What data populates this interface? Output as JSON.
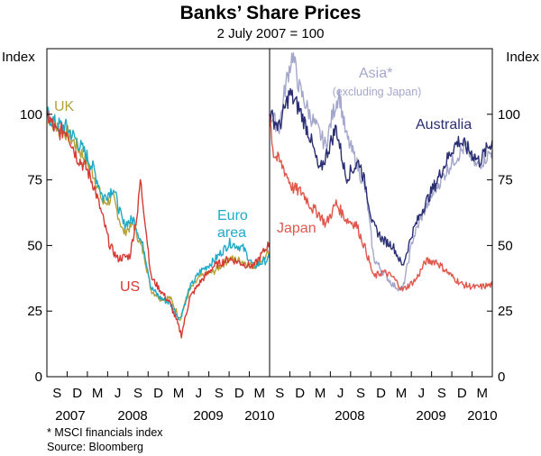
{
  "chart_data": {
    "type": "line",
    "title": "Banks’ Share Prices",
    "subtitle": "2 July 2007 = 100",
    "ylabel_left": "Index",
    "ylabel_right": "Index",
    "ylim": [
      0,
      125
    ],
    "yticks": [
      0,
      25,
      50,
      75,
      100
    ],
    "x_range": [
      "2007-07-02",
      "2010-04-15"
    ],
    "month_ticks": [
      "S",
      "D",
      "M",
      "J",
      "S",
      "D",
      "M",
      "J",
      "S",
      "D",
      "M"
    ],
    "panels": [
      {
        "name": "left",
        "year_labels": [
          "2007",
          "2008",
          "2009",
          "2010"
        ],
        "series": [
          {
            "name": "UK",
            "color": "#b5a338",
            "points": [
              [
                "2007-07-02",
                100
              ],
              [
                "2007-08-15",
                95
              ],
              [
                "2007-10-01",
                93
              ],
              [
                "2007-11-15",
                88
              ],
              [
                "2008-01-01",
                82
              ],
              [
                "2008-02-01",
                77
              ],
              [
                "2008-03-15",
                66
              ],
              [
                "2008-05-01",
                68
              ],
              [
                "2008-06-15",
                55
              ],
              [
                "2008-08-01",
                58
              ],
              [
                "2008-09-20",
                46
              ],
              [
                "2008-10-20",
                33
              ],
              [
                "2008-12-01",
                30
              ],
              [
                "2009-01-15",
                30
              ],
              [
                "2009-03-01",
                22
              ],
              [
                "2009-04-15",
                33
              ],
              [
                "2009-06-01",
                38
              ],
              [
                "2009-08-01",
                40
              ],
              [
                "2009-10-15",
                45
              ],
              [
                "2009-12-15",
                44
              ],
              [
                "2010-02-01",
                42
              ],
              [
                "2010-04-15",
                47
              ]
            ]
          },
          {
            "name": "Euro area",
            "color": "#1eaac8",
            "points": [
              [
                "2007-07-02",
                100
              ],
              [
                "2007-08-15",
                96
              ],
              [
                "2007-10-01",
                95
              ],
              [
                "2007-11-15",
                90
              ],
              [
                "2008-01-01",
                84
              ],
              [
                "2008-02-01",
                79
              ],
              [
                "2008-03-15",
                68
              ],
              [
                "2008-05-01",
                72
              ],
              [
                "2008-06-15",
                58
              ],
              [
                "2008-08-01",
                60
              ],
              [
                "2008-09-20",
                48
              ],
              [
                "2008-10-20",
                34
              ],
              [
                "2008-12-01",
                30
              ],
              [
                "2009-01-15",
                28
              ],
              [
                "2009-03-01",
                22
              ],
              [
                "2009-04-15",
                34
              ],
              [
                "2009-06-01",
                40
              ],
              [
                "2009-08-01",
                44
              ],
              [
                "2009-10-15",
                51
              ],
              [
                "2009-12-15",
                49
              ],
              [
                "2010-02-01",
                42
              ],
              [
                "2010-04-15",
                45
              ]
            ]
          },
          {
            "name": "US",
            "color": "#d63a34",
            "points": [
              [
                "2007-07-02",
                100
              ],
              [
                "2007-08-15",
                93
              ],
              [
                "2007-10-01",
                94
              ],
              [
                "2007-11-15",
                84
              ],
              [
                "2008-01-01",
                79
              ],
              [
                "2008-02-01",
                73
              ],
              [
                "2008-03-15",
                60
              ],
              [
                "2008-04-15",
                50
              ],
              [
                "2008-05-20",
                45
              ],
              [
                "2008-07-15",
                46
              ],
              [
                "2008-08-20",
                63
              ],
              [
                "2008-09-01",
                75
              ],
              [
                "2008-09-25",
                58
              ],
              [
                "2008-10-20",
                38
              ],
              [
                "2008-12-01",
                33
              ],
              [
                "2009-01-15",
                28
              ],
              [
                "2009-03-08",
                16
              ],
              [
                "2009-04-15",
                30
              ],
              [
                "2009-06-01",
                36
              ],
              [
                "2009-08-01",
                42
              ],
              [
                "2009-10-15",
                45
              ],
              [
                "2009-12-15",
                43
              ],
              [
                "2010-02-01",
                42
              ],
              [
                "2010-04-15",
                51
              ]
            ]
          }
        ]
      },
      {
        "name": "right",
        "year_labels": [
          "2008",
          "2009",
          "2010"
        ],
        "series": [
          {
            "name": "Asia*",
            "note": "(excluding Japan)",
            "color": "#a4a7cb",
            "points": [
              [
                "2007-07-02",
                100
              ],
              [
                "2007-08-15",
                95
              ],
              [
                "2007-09-15",
                112
              ],
              [
                "2007-10-15",
                123
              ],
              [
                "2007-11-15",
                110
              ],
              [
                "2008-01-01",
                100
              ],
              [
                "2008-02-01",
                95
              ],
              [
                "2008-03-15",
                88
              ],
              [
                "2008-04-15",
                100
              ],
              [
                "2008-05-15",
                108
              ],
              [
                "2008-06-15",
                92
              ],
              [
                "2008-08-01",
                82
              ],
              [
                "2008-09-15",
                70
              ],
              [
                "2008-10-20",
                45
              ],
              [
                "2008-12-01",
                40
              ],
              [
                "2009-01-15",
                35
              ],
              [
                "2009-03-01",
                33
              ],
              [
                "2009-04-15",
                52
              ],
              [
                "2009-06-01",
                62
              ],
              [
                "2009-08-01",
                72
              ],
              [
                "2009-10-15",
                82
              ],
              [
                "2009-12-15",
                88
              ],
              [
                "2010-02-01",
                80
              ],
              [
                "2010-04-15",
                86
              ]
            ]
          },
          {
            "name": "Australia",
            "color": "#2a2e72",
            "points": [
              [
                "2007-07-02",
                100
              ],
              [
                "2007-08-15",
                95
              ],
              [
                "2007-10-01",
                108
              ],
              [
                "2007-11-15",
                102
              ],
              [
                "2008-01-01",
                92
              ],
              [
                "2008-02-15",
                78
              ],
              [
                "2008-03-15",
                84
              ],
              [
                "2008-05-01",
                95
              ],
              [
                "2008-06-15",
                76
              ],
              [
                "2008-08-15",
                82
              ],
              [
                "2008-09-15",
                72
              ],
              [
                "2008-10-15",
                58
              ],
              [
                "2008-12-01",
                52
              ],
              [
                "2009-01-15",
                50
              ],
              [
                "2009-03-01",
                42
              ],
              [
                "2009-04-15",
                55
              ],
              [
                "2009-06-01",
                64
              ],
              [
                "2009-08-01",
                74
              ],
              [
                "2009-10-15",
                87
              ],
              [
                "2009-11-15",
                90
              ],
              [
                "2010-01-01",
                86
              ],
              [
                "2010-02-15",
                82
              ],
              [
                "2010-04-15",
                90
              ]
            ]
          },
          {
            "name": "Japan",
            "color": "#e0584c",
            "points": [
              [
                "2007-07-02",
                100
              ],
              [
                "2007-07-20",
                85
              ],
              [
                "2007-09-01",
                80
              ],
              [
                "2007-10-15",
                72
              ],
              [
                "2007-12-01",
                70
              ],
              [
                "2008-01-15",
                64
              ],
              [
                "2008-02-15",
                62
              ],
              [
                "2008-03-15",
                58
              ],
              [
                "2008-05-01",
                66
              ],
              [
                "2008-06-15",
                60
              ],
              [
                "2008-08-01",
                58
              ],
              [
                "2008-09-15",
                48
              ],
              [
                "2008-10-20",
                38
              ],
              [
                "2008-12-01",
                40
              ],
              [
                "2009-01-15",
                38
              ],
              [
                "2009-03-01",
                33
              ],
              [
                "2009-05-01",
                37
              ],
              [
                "2009-06-15",
                44
              ],
              [
                "2009-08-01",
                44
              ],
              [
                "2009-10-15",
                38
              ],
              [
                "2009-12-01",
                35
              ],
              [
                "2010-02-01",
                34
              ],
              [
                "2010-04-15",
                35
              ]
            ]
          }
        ]
      }
    ],
    "footnote": "*   MSCI financials index",
    "source": "Source: Bloomberg"
  }
}
